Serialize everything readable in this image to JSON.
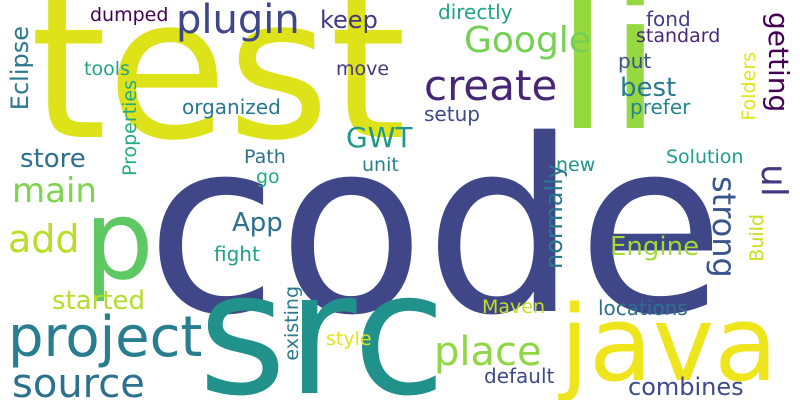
{
  "words": [
    {
      "text": "code",
      "color": "#3f4788"
    },
    {
      "text": "test",
      "color": "#dde318"
    },
    {
      "text": "src",
      "color": "#21918c"
    },
    {
      "text": "li",
      "color": "#95d840"
    },
    {
      "text": "java",
      "color": "#efe51c"
    },
    {
      "text": "p",
      "color": "#5ec962"
    },
    {
      "text": "project",
      "color": "#287d8e"
    },
    {
      "text": "create",
      "color": "#482677"
    },
    {
      "text": "plugin",
      "color": "#3f4788"
    },
    {
      "text": "Google",
      "color": "#75d054"
    },
    {
      "text": "place",
      "color": "#8fd744"
    },
    {
      "text": "source",
      "color": "#2c728e"
    },
    {
      "text": "main",
      "color": "#7fd34e"
    },
    {
      "text": "add",
      "color": "#b8de29"
    },
    {
      "text": "strong",
      "color": "#39568c"
    },
    {
      "text": "ul",
      "color": "#453781"
    },
    {
      "text": "Eclipse",
      "color": "#2a788e"
    },
    {
      "text": "getting",
      "color": "#440154"
    },
    {
      "text": "best",
      "color": "#2a788e"
    },
    {
      "text": "GWT",
      "color": "#1f988b"
    },
    {
      "text": "store",
      "color": "#2d708e"
    },
    {
      "text": "keep",
      "color": "#453781"
    },
    {
      "text": "App",
      "color": "#2d708e"
    },
    {
      "text": "Engine",
      "color": "#a2da37"
    },
    {
      "text": "started",
      "color": "#b5de2b"
    },
    {
      "text": "combines",
      "color": "#3e4a89"
    },
    {
      "text": "normally",
      "color": "#2a788e"
    },
    {
      "text": "directly",
      "color": "#20a386"
    },
    {
      "text": "dumped",
      "color": "#440154"
    },
    {
      "text": "fond",
      "color": "#424086"
    },
    {
      "text": "standard",
      "color": "#482878"
    },
    {
      "text": "put",
      "color": "#3b528b"
    },
    {
      "text": "tools",
      "color": "#20a386"
    },
    {
      "text": "move",
      "color": "#453882"
    },
    {
      "text": "organized",
      "color": "#2a788e"
    },
    {
      "text": "prefer",
      "color": "#25858e"
    },
    {
      "text": "setup",
      "color": "#3e4989"
    },
    {
      "text": "Properties",
      "color": "#25ab82"
    },
    {
      "text": "Folders",
      "color": "#e5e419"
    },
    {
      "text": "Path",
      "color": "#2d718e"
    },
    {
      "text": "Solution",
      "color": "#1f9e89"
    },
    {
      "text": "unit",
      "color": "#26828e"
    },
    {
      "text": "new",
      "color": "#1f968b"
    },
    {
      "text": "go",
      "color": "#25ab82"
    },
    {
      "text": "fight",
      "color": "#1fa287"
    },
    {
      "text": "Build",
      "color": "#c8e020"
    },
    {
      "text": "Maven",
      "color": "#c2df23"
    },
    {
      "text": "locations",
      "color": "#2d708e"
    },
    {
      "text": "existing",
      "color": "#2a788e"
    },
    {
      "text": "style",
      "color": "#e2e418"
    },
    {
      "text": "default",
      "color": "#3e4a89"
    }
  ]
}
